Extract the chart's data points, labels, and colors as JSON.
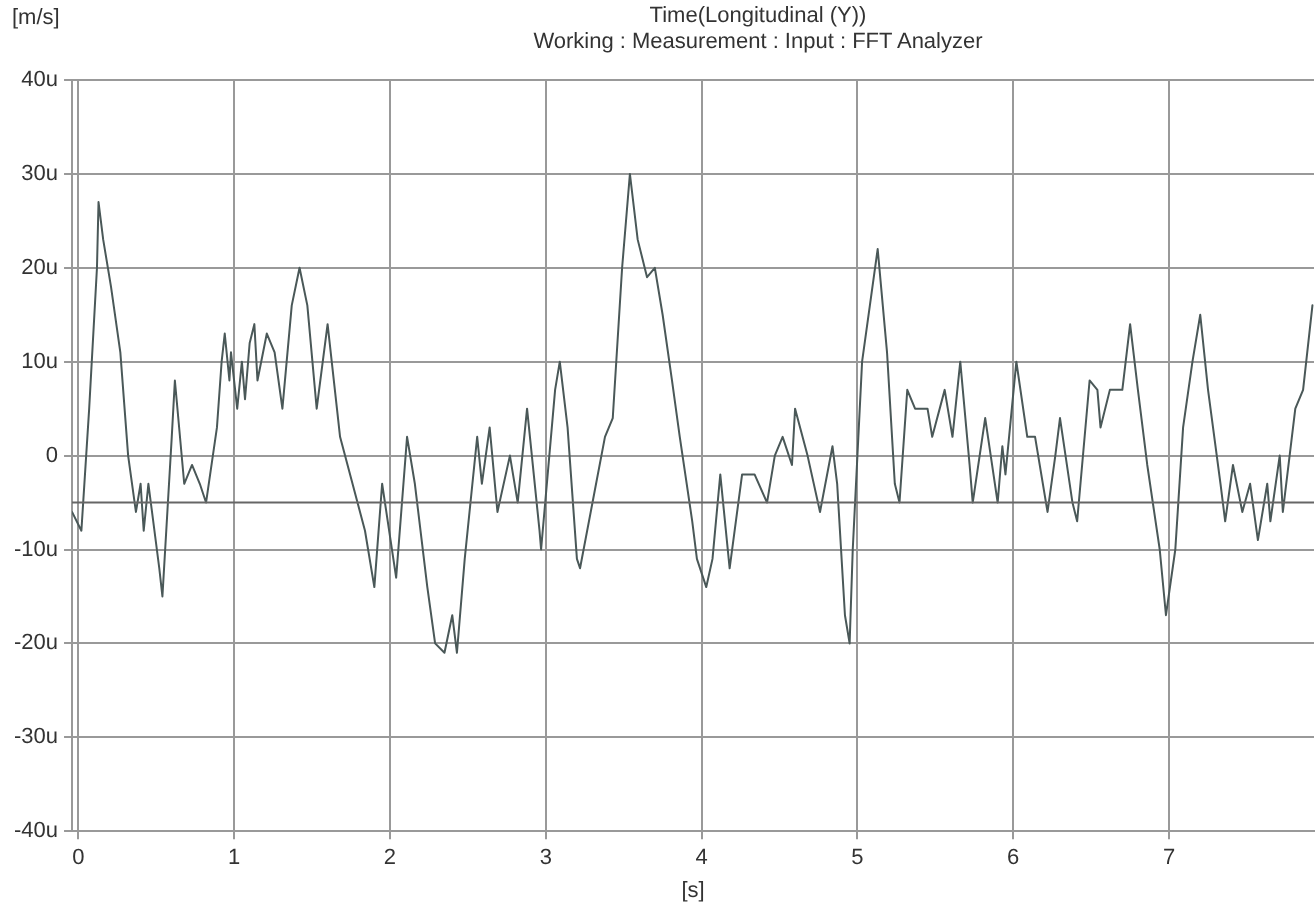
{
  "chart_data": {
    "type": "line",
    "title": "Time(Longitudinal (Y))",
    "subtitle": "Working : Measurement : Input : FFT Analyzer",
    "xlabel": "[s]",
    "ylabel": "[m/s]",
    "xlim": [
      -0.04,
      7.93
    ],
    "xticks": [
      0,
      1,
      2,
      3,
      4,
      5,
      6,
      7
    ],
    "ylim": [
      -40,
      40
    ],
    "yticks": [
      {
        "value": -40,
        "label": "-40u"
      },
      {
        "value": -30,
        "label": "-30u"
      },
      {
        "value": -20,
        "label": "-20u"
      },
      {
        "value": -10,
        "label": "-10u"
      },
      0,
      {
        "value": 10,
        "label": "10u"
      },
      {
        "value": 20,
        "label": "20u"
      },
      {
        "value": 30,
        "label": "30u"
      },
      {
        "value": 40,
        "label": "40u"
      }
    ],
    "grid": true,
    "legend": false,
    "marker": "none",
    "line_style": "solid",
    "ref_lines": [
      {
        "axis": "y",
        "value": -5,
        "color": "#666666"
      }
    ],
    "series": [
      {
        "color": "#4a5858",
        "x": [
          -0.04,
          0.02,
          0.07,
          0.12,
          0.13,
          0.16,
          0.21,
          0.27,
          0.32,
          0.37,
          0.4,
          0.42,
          0.45,
          0.52,
          0.54,
          0.6,
          0.62,
          0.68,
          0.73,
          0.78,
          0.82,
          0.89,
          0.92,
          0.94,
          0.97,
          0.98,
          1.02,
          1.05,
          1.07,
          1.1,
          1.13,
          1.15,
          1.21,
          1.26,
          1.31,
          1.37,
          1.42,
          1.47,
          1.53,
          1.6,
          1.66,
          1.68,
          1.76,
          1.84,
          1.9,
          1.95,
          2.04,
          2.11,
          2.16,
          2.24,
          2.29,
          2.35,
          2.4,
          2.43,
          2.48,
          2.56,
          2.59,
          2.64,
          2.69,
          2.77,
          2.82,
          2.88,
          2.96,
          2.97,
          3.06,
          3.09,
          3.14,
          3.2,
          3.22,
          3.3,
          3.38,
          3.43,
          3.49,
          3.54,
          3.59,
          3.65,
          3.7,
          3.75,
          3.81,
          3.86,
          3.94,
          3.97,
          4.03,
          4.07,
          4.12,
          4.18,
          4.26,
          4.34,
          4.42,
          4.47,
          4.52,
          4.58,
          4.6,
          4.68,
          4.76,
          4.84,
          4.87,
          4.92,
          4.95,
          4.97,
          5.03,
          5.08,
          5.13,
          5.19,
          5.24,
          5.27,
          5.32,
          5.37,
          5.45,
          5.48,
          5.56,
          5.61,
          5.66,
          5.72,
          5.74,
          5.82,
          5.9,
          5.93,
          5.95,
          6.02,
          6.09,
          6.14,
          6.22,
          6.27,
          6.3,
          6.38,
          6.41,
          6.49,
          6.54,
          6.56,
          6.62,
          6.7,
          6.75,
          6.8,
          6.86,
          6.94,
          6.98,
          7.04,
          7.09,
          7.15,
          7.2,
          7.25,
          7.33,
          7.36,
          7.41,
          7.47,
          7.52,
          7.57,
          7.63,
          7.65,
          7.71,
          7.73,
          7.81,
          7.86,
          7.92
        ],
        "values": [
          -6,
          -8,
          5,
          20,
          27,
          23,
          18,
          11,
          0,
          -6,
          -3,
          -8,
          -3,
          -12,
          -15,
          2,
          8,
          -3,
          -1,
          -3,
          -5,
          3,
          10,
          13,
          8,
          11,
          5,
          10,
          6,
          12,
          14,
          8,
          13,
          11,
          5,
          16,
          20,
          16,
          5,
          14,
          5,
          2,
          -3,
          -8,
          -14,
          -3,
          -13,
          2,
          -3,
          -14,
          -20,
          -21,
          -17,
          -21,
          -11,
          2,
          -3,
          3,
          -6,
          0,
          -5,
          5,
          -8,
          -10,
          7,
          10,
          3,
          -11,
          -12,
          -5,
          2,
          4,
          20,
          30,
          23,
          19,
          20,
          15,
          8,
          2,
          -7,
          -11,
          -14,
          -11,
          -2,
          -12,
          -2,
          -2,
          -5,
          0,
          2,
          -1,
          5,
          0,
          -6,
          1,
          -3,
          -17,
          -20,
          -10,
          10,
          16,
          22,
          11,
          -3,
          -5,
          7,
          5,
          5,
          2,
          7,
          2,
          10,
          -1,
          -5,
          4,
          -5,
          1,
          -2,
          10,
          2,
          2,
          -6,
          0,
          4,
          -5,
          -7,
          8,
          7,
          3,
          7,
          7,
          14,
          7,
          -1,
          -10,
          -17,
          -10,
          3,
          10,
          15,
          7,
          -3,
          -7,
          -1,
          -6,
          -3,
          -9,
          -3,
          -7,
          0,
          -6,
          5,
          7,
          16
        ]
      }
    ]
  }
}
